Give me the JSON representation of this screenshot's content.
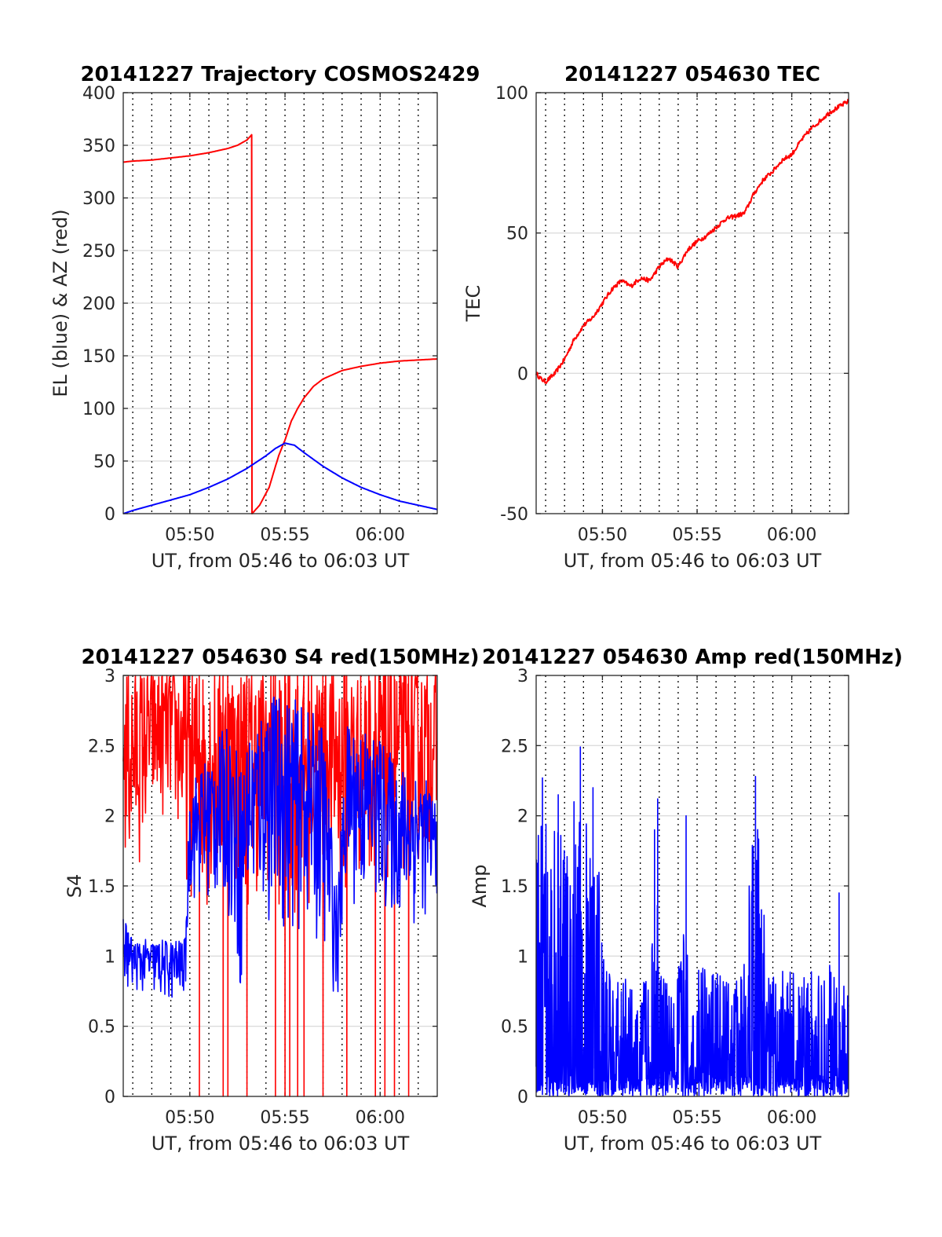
{
  "figure": {
    "background": "#ffffff"
  },
  "chart_data": [
    {
      "id": "trajectory",
      "type": "line",
      "title": "20141227 Trajectory COSMOS2429",
      "xlabel": "UT, from 05:46 to 06:03 UT",
      "ylabel": "EL (blue) & AZ (red)",
      "xlim": [
        "05:46:30",
        "06:03:00"
      ],
      "ylim": [
        0,
        400
      ],
      "yticks": [
        0,
        50,
        100,
        150,
        200,
        250,
        300,
        350,
        400
      ],
      "xtick_labels": [
        "05:50",
        "05:55",
        "06:00"
      ],
      "grid": true,
      "series": [
        {
          "color": "#ff0000",
          "kind": "azimuth",
          "points": [
            [
              "05:46:30",
              334
            ],
            [
              "05:47:00",
              335
            ],
            [
              "05:48:00",
              336
            ],
            [
              "05:49:00",
              338
            ],
            [
              "05:50:00",
              340
            ],
            [
              "05:51:00",
              343
            ],
            [
              "05:52:00",
              347
            ],
            [
              "05:52:30",
              350
            ],
            [
              "05:53:00",
              355
            ],
            [
              "05:53:15",
              360
            ],
            [
              "05:53:16",
              0
            ],
            [
              "05:53:40",
              8
            ],
            [
              "05:54:10",
              25
            ],
            [
              "05:54:40",
              55
            ],
            [
              "05:55:00",
              70
            ],
            [
              "05:55:20",
              88
            ],
            [
              "05:55:40",
              100
            ],
            [
              "05:56:00",
              110
            ],
            [
              "05:56:30",
              121
            ],
            [
              "05:57:00",
              128
            ],
            [
              "05:58:00",
              136
            ],
            [
              "05:59:00",
              140
            ],
            [
              "06:00:00",
              143
            ],
            [
              "06:01:00",
              145
            ],
            [
              "06:02:00",
              146
            ],
            [
              "06:03:00",
              147
            ]
          ]
        },
        {
          "color": "#0000ff",
          "kind": "elevation",
          "points": [
            [
              "05:46:30",
              0
            ],
            [
              "05:47:00",
              3
            ],
            [
              "05:48:00",
              8
            ],
            [
              "05:49:00",
              13
            ],
            [
              "05:50:00",
              18
            ],
            [
              "05:51:00",
              25
            ],
            [
              "05:52:00",
              33
            ],
            [
              "05:53:00",
              43
            ],
            [
              "05:54:00",
              55
            ],
            [
              "05:54:30",
              62
            ],
            [
              "05:55:00",
              67
            ],
            [
              "05:55:30",
              65
            ],
            [
              "05:56:00",
              58
            ],
            [
              "05:57:00",
              45
            ],
            [
              "05:58:00",
              34
            ],
            [
              "05:59:00",
              25
            ],
            [
              "06:00:00",
              18
            ],
            [
              "06:01:00",
              12
            ],
            [
              "06:02:00",
              8
            ],
            [
              "06:03:00",
              4
            ]
          ]
        }
      ]
    },
    {
      "id": "tec",
      "type": "line",
      "title": "20141227 054630 TEC",
      "xlabel": "UT, from 05:46 to 06:03 UT",
      "ylabel": "TEC",
      "xlim": [
        "05:46:30",
        "06:03:00"
      ],
      "ylim": [
        -50,
        100
      ],
      "yticks": [
        -50,
        0,
        50,
        100
      ],
      "xtick_labels": [
        "05:50",
        "05:55",
        "06:00"
      ],
      "grid": true,
      "series": [
        {
          "color": "#ff0000",
          "points": [
            [
              "05:46:30",
              0
            ],
            [
              "05:46:45",
              -2
            ],
            [
              "05:47:00",
              -3
            ],
            [
              "05:47:30",
              0
            ],
            [
              "05:48:00",
              5
            ],
            [
              "05:48:30",
              12
            ],
            [
              "05:49:00",
              17
            ],
            [
              "05:49:30",
              20
            ],
            [
              "05:50:00",
              25
            ],
            [
              "05:50:30",
              30
            ],
            [
              "05:51:00",
              33
            ],
            [
              "05:51:30",
              31
            ],
            [
              "05:52:00",
              34
            ],
            [
              "05:52:30",
              33
            ],
            [
              "05:53:00",
              38
            ],
            [
              "05:53:30",
              41
            ],
            [
              "05:54:00",
              38
            ],
            [
              "05:54:30",
              44
            ],
            [
              "05:55:00",
              47
            ],
            [
              "05:55:30",
              49
            ],
            [
              "05:56:00",
              52
            ],
            [
              "05:56:30",
              55
            ],
            [
              "05:57:00",
              56
            ],
            [
              "05:57:30",
              57
            ],
            [
              "05:58:00",
              64
            ],
            [
              "05:58:30",
              69
            ],
            [
              "05:59:00",
              72
            ],
            [
              "05:59:30",
              76
            ],
            [
              "06:00:00",
              78
            ],
            [
              "06:00:30",
              83
            ],
            [
              "06:01:00",
              87
            ],
            [
              "06:01:30",
              90
            ],
            [
              "06:02:00",
              93
            ],
            [
              "06:02:30",
              95
            ],
            [
              "06:03:00",
              97
            ]
          ]
        }
      ]
    },
    {
      "id": "s4",
      "type": "line",
      "title": "20141227 054630 S4 red(150MHz)",
      "xlabel": "UT, from 05:46 to 06:03 UT",
      "ylabel": "S4",
      "xlim": [
        "05:46:30",
        "06:03:00"
      ],
      "ylim": [
        0,
        3
      ],
      "yticks": [
        0,
        0.5,
        1,
        1.5,
        2,
        2.5,
        3
      ],
      "xtick_labels": [
        "05:50",
        "05:55",
        "06:00"
      ],
      "grid": true,
      "series": [
        {
          "color": "#ff0000",
          "kind": "noisy-envelope",
          "envelope": [
            [
              "05:46:30",
              1.6,
              3
            ],
            [
              "05:47:00",
              1.5,
              3
            ],
            [
              "05:48:00",
              1.9,
              3
            ],
            [
              "05:49:00",
              2.0,
              3
            ],
            [
              "05:50:00",
              1.4,
              3
            ],
            [
              "05:51:00",
              1.3,
              3
            ],
            [
              "05:52:00",
              1.4,
              3
            ],
            [
              "05:53:00",
              1.3,
              3
            ],
            [
              "05:54:00",
              1.5,
              3
            ],
            [
              "05:55:00",
              1.2,
              3
            ],
            [
              "05:56:00",
              1.3,
              3
            ],
            [
              "05:57:00",
              1.5,
              3
            ],
            [
              "05:58:00",
              1.3,
              3
            ],
            [
              "05:59:00",
              1.5,
              3
            ],
            [
              "06:00:00",
              1.4,
              3
            ],
            [
              "06:01:00",
              1.5,
              3
            ],
            [
              "06:02:00",
              1.6,
              3
            ],
            [
              "06:03:00",
              1.7,
              3
            ]
          ],
          "dropouts_to_zero": [
            "05:50:30",
            "05:51:45",
            "05:52:00",
            "05:53:00",
            "05:54:30",
            "05:55:00",
            "05:55:15",
            "05:55:40",
            "05:56:00",
            "05:57:00",
            "05:58:15",
            "05:59:45",
            "06:00:15",
            "06:00:45",
            "06:01:30"
          ]
        },
        {
          "color": "#0000ff",
          "kind": "noisy-envelope",
          "envelope": [
            [
              "05:46:30",
              0.75,
              1.3
            ],
            [
              "05:47:00",
              0.75,
              1.1
            ],
            [
              "05:48:00",
              0.7,
              1.1
            ],
            [
              "05:49:00",
              0.65,
              1.1
            ],
            [
              "05:49:45",
              0.7,
              1.1
            ],
            [
              "05:50:00",
              1.4,
              2.2
            ],
            [
              "05:51:00",
              1.3,
              2.4
            ],
            [
              "05:52:00",
              1.3,
              2.6
            ],
            [
              "05:52:45",
              0.6,
              2.3
            ],
            [
              "05:53:00",
              1.3,
              2.5
            ],
            [
              "05:54:00",
              1.2,
              2.8
            ],
            [
              "05:55:00",
              1.1,
              2.8
            ],
            [
              "05:56:00",
              1.2,
              2.7
            ],
            [
              "05:57:00",
              1.0,
              2.6
            ],
            [
              "05:57:45",
              0.65,
              1.4
            ],
            [
              "05:58:15",
              1.4,
              2.6
            ],
            [
              "05:59:00",
              1.3,
              2.6
            ],
            [
              "06:00:00",
              1.3,
              2.5
            ],
            [
              "06:01:00",
              1.2,
              2.3
            ],
            [
              "06:02:00",
              1.2,
              2.3
            ],
            [
              "06:03:00",
              1.4,
              2.1
            ]
          ]
        }
      ]
    },
    {
      "id": "amp",
      "type": "line",
      "title": "20141227 054630 Amp red(150MHz)",
      "xlabel": "UT, from 05:46 to 06:03 UT",
      "ylabel": "Amp",
      "xlim": [
        "05:46:30",
        "06:03:00"
      ],
      "ylim": [
        0,
        3
      ],
      "yticks": [
        0,
        0.5,
        1,
        1.5,
        2,
        2.5,
        3
      ],
      "xtick_labels": [
        "05:50",
        "05:55",
        "06:00"
      ],
      "grid": true,
      "series": [
        {
          "color": "#0000ff",
          "kind": "noisy-envelope",
          "envelope": [
            [
              "05:46:30",
              0,
              1.8
            ],
            [
              "05:47:00",
              0,
              1.9
            ],
            [
              "05:48:00",
              0,
              1.9
            ],
            [
              "05:49:00",
              0,
              2.0
            ],
            [
              "05:49:30",
              0,
              1.8
            ],
            [
              "05:50:00",
              0,
              1.6
            ],
            [
              "05:50:10",
              0,
              0.9
            ],
            [
              "05:51:00",
              0,
              0.8
            ],
            [
              "05:52:00",
              0,
              0.8
            ],
            [
              "05:52:30",
              0,
              1.0
            ],
            [
              "05:52:50",
              0,
              1.6
            ],
            [
              "05:53:10",
              0,
              0.8
            ],
            [
              "05:54:00",
              0,
              0.9
            ],
            [
              "05:54:20",
              0,
              1.2
            ],
            [
              "05:55:00",
              0,
              0.9
            ],
            [
              "05:56:00",
              0,
              0.85
            ],
            [
              "05:57:00",
              0,
              0.85
            ],
            [
              "05:57:30",
              0,
              0.9
            ],
            [
              "05:57:50",
              0,
              1.8
            ],
            [
              "05:58:20",
              0,
              2.0
            ],
            [
              "05:58:40",
              0,
              0.9
            ],
            [
              "05:59:00",
              0,
              0.85
            ],
            [
              "06:00:00",
              0,
              0.85
            ],
            [
              "06:01:00",
              0,
              0.85
            ],
            [
              "06:02:00",
              0,
              0.9
            ],
            [
              "06:03:00",
              0,
              0.9
            ]
          ],
          "spikes": [
            [
              "05:46:50",
              2.27
            ],
            [
              "05:47:40",
              2.15
            ],
            [
              "05:48:30",
              2.1
            ],
            [
              "05:48:50",
              2.49
            ],
            [
              "05:49:30",
              2.2
            ],
            [
              "05:52:45",
              1.9
            ],
            [
              "05:52:55",
              2.12
            ],
            [
              "05:54:25",
              2.0
            ],
            [
              "05:58:05",
              2.28
            ],
            [
              "06:02:30",
              1.45
            ]
          ]
        }
      ]
    }
  ]
}
